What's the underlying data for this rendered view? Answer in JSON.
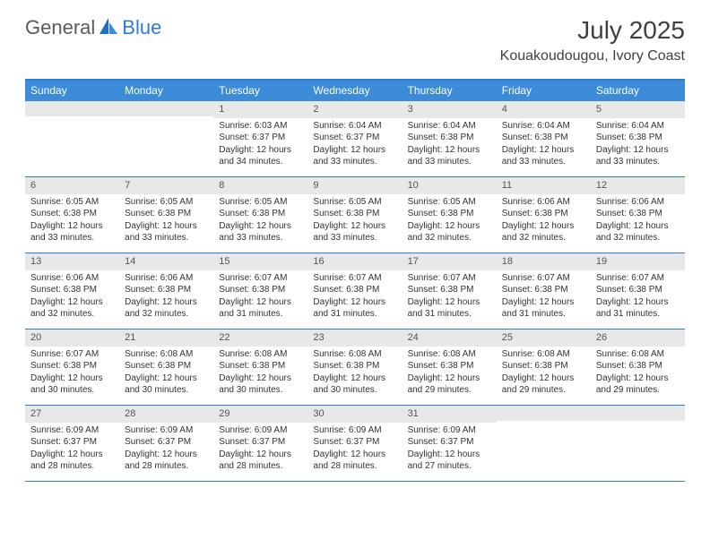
{
  "brand": {
    "part1": "General",
    "part2": "Blue"
  },
  "title": "July 2025",
  "location": "Kouakoudougou, Ivory Coast",
  "colors": {
    "header_bg": "#3b8bd8",
    "border": "#2e7cd6",
    "daynum_bg": "#e8e8e8",
    "text": "#333333",
    "title": "#404040"
  },
  "day_names": [
    "Sunday",
    "Monday",
    "Tuesday",
    "Wednesday",
    "Thursday",
    "Friday",
    "Saturday"
  ],
  "weeks": [
    [
      {
        "n": "",
        "sr": "",
        "ss": "",
        "dl": ""
      },
      {
        "n": "",
        "sr": "",
        "ss": "",
        "dl": ""
      },
      {
        "n": "1",
        "sr": "Sunrise: 6:03 AM",
        "ss": "Sunset: 6:37 PM",
        "dl": "Daylight: 12 hours and 34 minutes."
      },
      {
        "n": "2",
        "sr": "Sunrise: 6:04 AM",
        "ss": "Sunset: 6:37 PM",
        "dl": "Daylight: 12 hours and 33 minutes."
      },
      {
        "n": "3",
        "sr": "Sunrise: 6:04 AM",
        "ss": "Sunset: 6:38 PM",
        "dl": "Daylight: 12 hours and 33 minutes."
      },
      {
        "n": "4",
        "sr": "Sunrise: 6:04 AM",
        "ss": "Sunset: 6:38 PM",
        "dl": "Daylight: 12 hours and 33 minutes."
      },
      {
        "n": "5",
        "sr": "Sunrise: 6:04 AM",
        "ss": "Sunset: 6:38 PM",
        "dl": "Daylight: 12 hours and 33 minutes."
      }
    ],
    [
      {
        "n": "6",
        "sr": "Sunrise: 6:05 AM",
        "ss": "Sunset: 6:38 PM",
        "dl": "Daylight: 12 hours and 33 minutes."
      },
      {
        "n": "7",
        "sr": "Sunrise: 6:05 AM",
        "ss": "Sunset: 6:38 PM",
        "dl": "Daylight: 12 hours and 33 minutes."
      },
      {
        "n": "8",
        "sr": "Sunrise: 6:05 AM",
        "ss": "Sunset: 6:38 PM",
        "dl": "Daylight: 12 hours and 33 minutes."
      },
      {
        "n": "9",
        "sr": "Sunrise: 6:05 AM",
        "ss": "Sunset: 6:38 PM",
        "dl": "Daylight: 12 hours and 33 minutes."
      },
      {
        "n": "10",
        "sr": "Sunrise: 6:05 AM",
        "ss": "Sunset: 6:38 PM",
        "dl": "Daylight: 12 hours and 32 minutes."
      },
      {
        "n": "11",
        "sr": "Sunrise: 6:06 AM",
        "ss": "Sunset: 6:38 PM",
        "dl": "Daylight: 12 hours and 32 minutes."
      },
      {
        "n": "12",
        "sr": "Sunrise: 6:06 AM",
        "ss": "Sunset: 6:38 PM",
        "dl": "Daylight: 12 hours and 32 minutes."
      }
    ],
    [
      {
        "n": "13",
        "sr": "Sunrise: 6:06 AM",
        "ss": "Sunset: 6:38 PM",
        "dl": "Daylight: 12 hours and 32 minutes."
      },
      {
        "n": "14",
        "sr": "Sunrise: 6:06 AM",
        "ss": "Sunset: 6:38 PM",
        "dl": "Daylight: 12 hours and 32 minutes."
      },
      {
        "n": "15",
        "sr": "Sunrise: 6:07 AM",
        "ss": "Sunset: 6:38 PM",
        "dl": "Daylight: 12 hours and 31 minutes."
      },
      {
        "n": "16",
        "sr": "Sunrise: 6:07 AM",
        "ss": "Sunset: 6:38 PM",
        "dl": "Daylight: 12 hours and 31 minutes."
      },
      {
        "n": "17",
        "sr": "Sunrise: 6:07 AM",
        "ss": "Sunset: 6:38 PM",
        "dl": "Daylight: 12 hours and 31 minutes."
      },
      {
        "n": "18",
        "sr": "Sunrise: 6:07 AM",
        "ss": "Sunset: 6:38 PM",
        "dl": "Daylight: 12 hours and 31 minutes."
      },
      {
        "n": "19",
        "sr": "Sunrise: 6:07 AM",
        "ss": "Sunset: 6:38 PM",
        "dl": "Daylight: 12 hours and 31 minutes."
      }
    ],
    [
      {
        "n": "20",
        "sr": "Sunrise: 6:07 AM",
        "ss": "Sunset: 6:38 PM",
        "dl": "Daylight: 12 hours and 30 minutes."
      },
      {
        "n": "21",
        "sr": "Sunrise: 6:08 AM",
        "ss": "Sunset: 6:38 PM",
        "dl": "Daylight: 12 hours and 30 minutes."
      },
      {
        "n": "22",
        "sr": "Sunrise: 6:08 AM",
        "ss": "Sunset: 6:38 PM",
        "dl": "Daylight: 12 hours and 30 minutes."
      },
      {
        "n": "23",
        "sr": "Sunrise: 6:08 AM",
        "ss": "Sunset: 6:38 PM",
        "dl": "Daylight: 12 hours and 30 minutes."
      },
      {
        "n": "24",
        "sr": "Sunrise: 6:08 AM",
        "ss": "Sunset: 6:38 PM",
        "dl": "Daylight: 12 hours and 29 minutes."
      },
      {
        "n": "25",
        "sr": "Sunrise: 6:08 AM",
        "ss": "Sunset: 6:38 PM",
        "dl": "Daylight: 12 hours and 29 minutes."
      },
      {
        "n": "26",
        "sr": "Sunrise: 6:08 AM",
        "ss": "Sunset: 6:38 PM",
        "dl": "Daylight: 12 hours and 29 minutes."
      }
    ],
    [
      {
        "n": "27",
        "sr": "Sunrise: 6:09 AM",
        "ss": "Sunset: 6:37 PM",
        "dl": "Daylight: 12 hours and 28 minutes."
      },
      {
        "n": "28",
        "sr": "Sunrise: 6:09 AM",
        "ss": "Sunset: 6:37 PM",
        "dl": "Daylight: 12 hours and 28 minutes."
      },
      {
        "n": "29",
        "sr": "Sunrise: 6:09 AM",
        "ss": "Sunset: 6:37 PM",
        "dl": "Daylight: 12 hours and 28 minutes."
      },
      {
        "n": "30",
        "sr": "Sunrise: 6:09 AM",
        "ss": "Sunset: 6:37 PM",
        "dl": "Daylight: 12 hours and 28 minutes."
      },
      {
        "n": "31",
        "sr": "Sunrise: 6:09 AM",
        "ss": "Sunset: 6:37 PM",
        "dl": "Daylight: 12 hours and 27 minutes."
      },
      {
        "n": "",
        "sr": "",
        "ss": "",
        "dl": ""
      },
      {
        "n": "",
        "sr": "",
        "ss": "",
        "dl": ""
      }
    ]
  ]
}
